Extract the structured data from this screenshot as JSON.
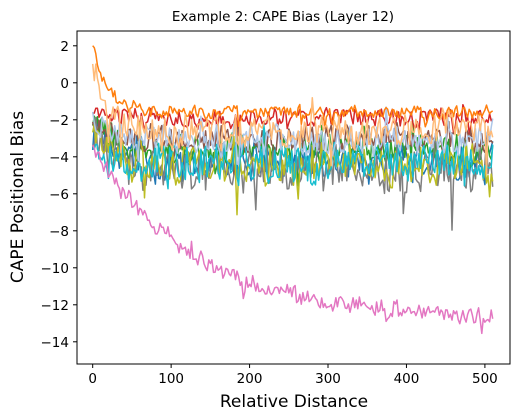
{
  "chart_data": {
    "type": "line",
    "title": "Example 2: CAPE Bias (Layer 12)",
    "xlabel": "Relative Distance",
    "ylabel": "CAPE Positional Bias",
    "xlim": [
      -20,
      532
    ],
    "ylim": [
      -15.2,
      2.8
    ],
    "xticks": [
      0,
      100,
      200,
      300,
      400,
      500
    ],
    "yticks": [
      2,
      0,
      -2,
      -4,
      -6,
      -8,
      -10,
      -12,
      -14
    ],
    "grid": false,
    "legend": "none",
    "x_range": [
      0,
      511
    ],
    "series": [
      {
        "color": "#1f77b4",
        "mean": -4.2,
        "amp": 1.2,
        "start": -2.5
      },
      {
        "color": "#2ca02c",
        "mean": -3.6,
        "amp": 1.0,
        "start": -1.6
      },
      {
        "color": "#d62728",
        "mean": -1.9,
        "amp": 0.6,
        "start": -1.4
      },
      {
        "color": "#8c564b",
        "mean": -3.0,
        "amp": 0.9,
        "start": -1.9
      },
      {
        "color": "#7f7f7f",
        "mean": -4.8,
        "amp": 1.4,
        "start": -2.7
      },
      {
        "color": "#bcbd22",
        "mean": -4.4,
        "amp": 1.2,
        "start": -2.4
      },
      {
        "color": "#17becf",
        "mean": -4.3,
        "amp": 1.3,
        "start": -3.5
      },
      {
        "color": "#aec7e8",
        "mean": -3.1,
        "amp": 1.0,
        "start": -1.8
      },
      {
        "color": "#ff7f0e",
        "mean": -1.6,
        "amp": 0.4,
        "start": 2.0
      },
      {
        "color": "#e377c2",
        "mean": -12.8,
        "amp": 0.55,
        "start": -3.5,
        "decay": true
      },
      {
        "color": "#ffbb78",
        "mean": -2.6,
        "amp": 1.1,
        "start": 0.5
      }
    ]
  }
}
